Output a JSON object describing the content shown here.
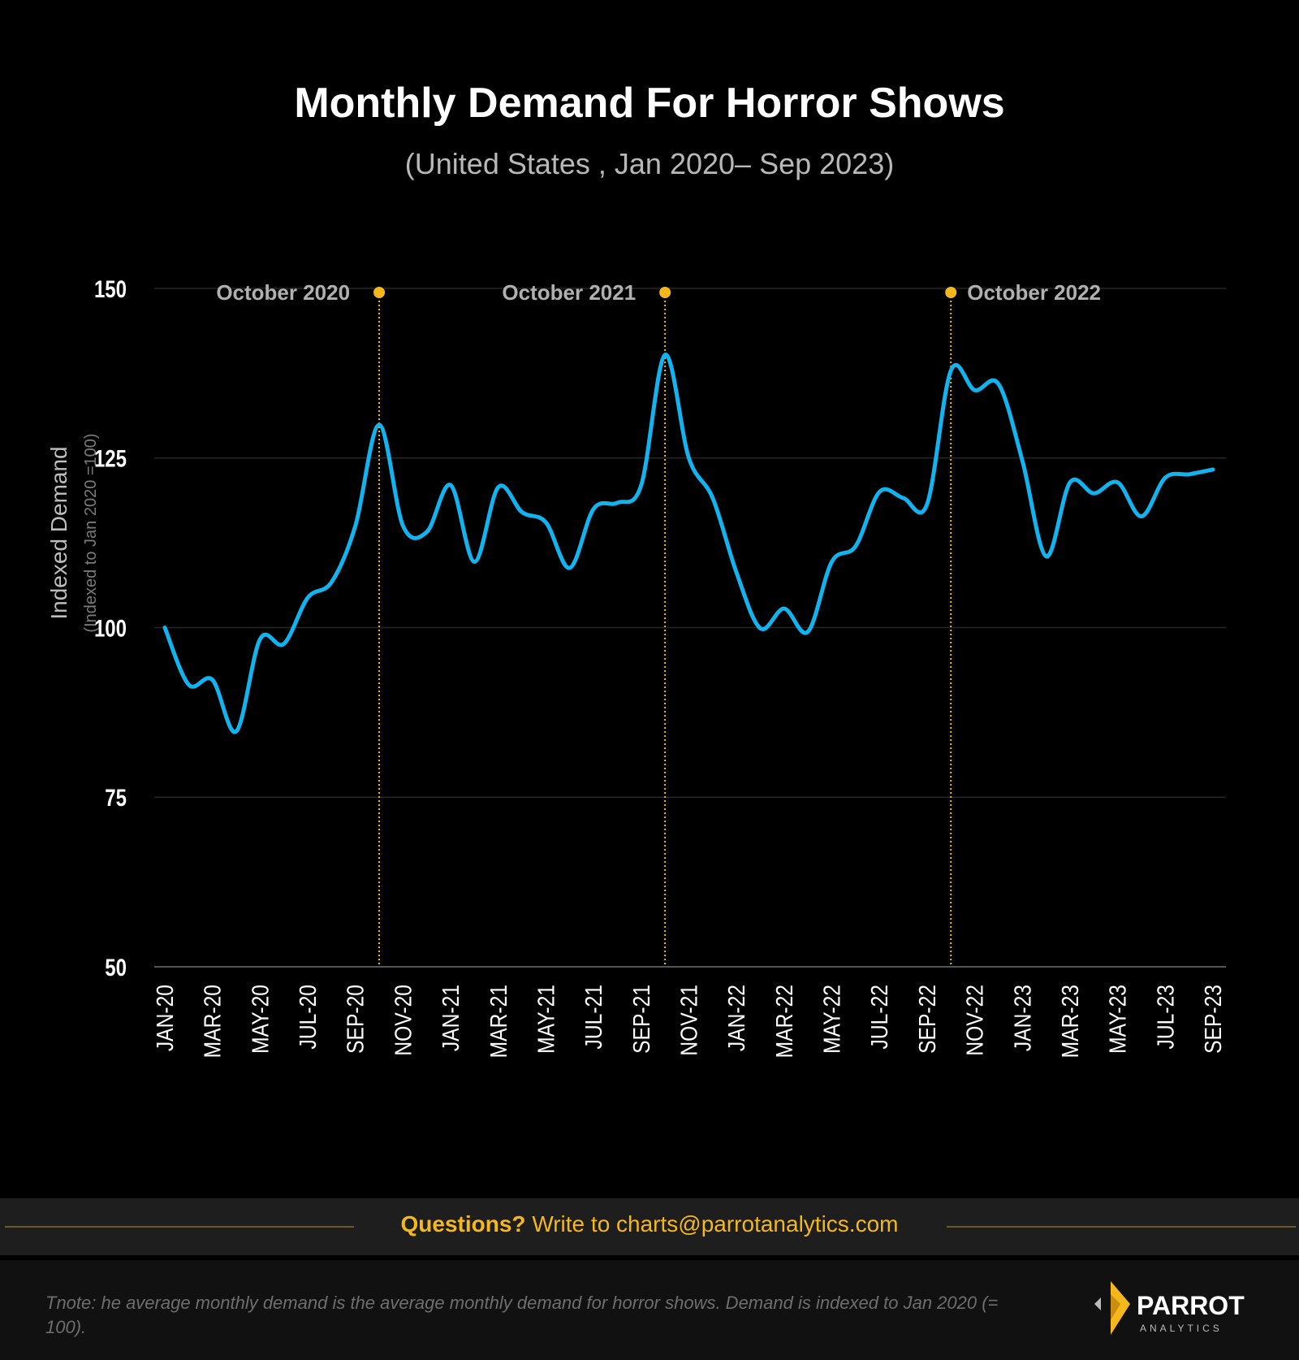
{
  "chart_data": {
    "type": "line",
    "title": "Monthly Demand For Horror Shows",
    "subtitle": "(United States , Jan 2020– Sep 2023)",
    "ylabel": "Indexed Demand",
    "ylabel_sub": "(Indexed to Jan 2020 =100)",
    "ylim": [
      50,
      150
    ],
    "yticks": [
      150,
      125,
      100,
      75,
      50
    ],
    "grid": true,
    "line_color": "#12b4ef",
    "annotation_color": "#f5b81c",
    "x_tick_labels": [
      "JAN-20",
      "MAR-20",
      "MAY-20",
      "JUL-20",
      "SEP-20",
      "NOV-20",
      "JAN-21",
      "MAR-21",
      "MAY-21",
      "JUL-21",
      "SEP-21",
      "NOV-21",
      "JAN-22",
      "MAR-22",
      "MAY-22",
      "JUL-22",
      "SEP-22",
      "NOV-22",
      "JAN-23",
      "MAR-23",
      "MAY-23",
      "JUL-23",
      "SEP-23"
    ],
    "x": [
      "Jan-20",
      "Feb-20",
      "Mar-20",
      "Apr-20",
      "May-20",
      "Jun-20",
      "Jul-20",
      "Aug-20",
      "Sep-20",
      "Oct-20",
      "Nov-20",
      "Dec-20",
      "Jan-21",
      "Feb-21",
      "Mar-21",
      "Apr-21",
      "May-21",
      "Jun-21",
      "Jul-21",
      "Aug-21",
      "Sep-21",
      "Oct-21",
      "Nov-21",
      "Dec-21",
      "Jan-22",
      "Feb-22",
      "Mar-22",
      "Apr-22",
      "May-22",
      "Jun-22",
      "Jul-22",
      "Aug-22",
      "Sep-22",
      "Oct-22",
      "Nov-22",
      "Dec-22",
      "Jan-23",
      "Feb-23",
      "Mar-23",
      "Apr-23",
      "May-23",
      "Jun-23",
      "Jul-23",
      "Aug-23",
      "Sep-23"
    ],
    "values": [
      100,
      91.6,
      92.3,
      84.7,
      98.3,
      97.6,
      104.4,
      106.7,
      115,
      129.9,
      115,
      114.1,
      121,
      109.7,
      120.7,
      117,
      115.5,
      108.8,
      117.5,
      118.4,
      121,
      140.2,
      125,
      119.1,
      108.1,
      99.9,
      102.8,
      99.4,
      109.7,
      112,
      120,
      119.1,
      118.2,
      137.9,
      135,
      135.9,
      124.6,
      110.5,
      121.4,
      119.8,
      121.4,
      116.4,
      122.1,
      122.6,
      123.3
    ],
    "annotations": [
      {
        "label": "October 2020",
        "month_index": 9,
        "side": "left"
      },
      {
        "label": "October 2021",
        "month_index": 21,
        "side": "left"
      },
      {
        "label": "October 2022",
        "month_index": 33,
        "side": "right"
      }
    ]
  },
  "footer": {
    "questions_label": "Questions?",
    "questions_text": "Write to charts@parrotanalytics.com",
    "note": "Tnote: he average monthly demand is the average monthly demand for horror shows. Demand is indexed to Jan 2020 (= 100).",
    "logo_text": "PARROT",
    "logo_sub": "ANALYTICS"
  }
}
